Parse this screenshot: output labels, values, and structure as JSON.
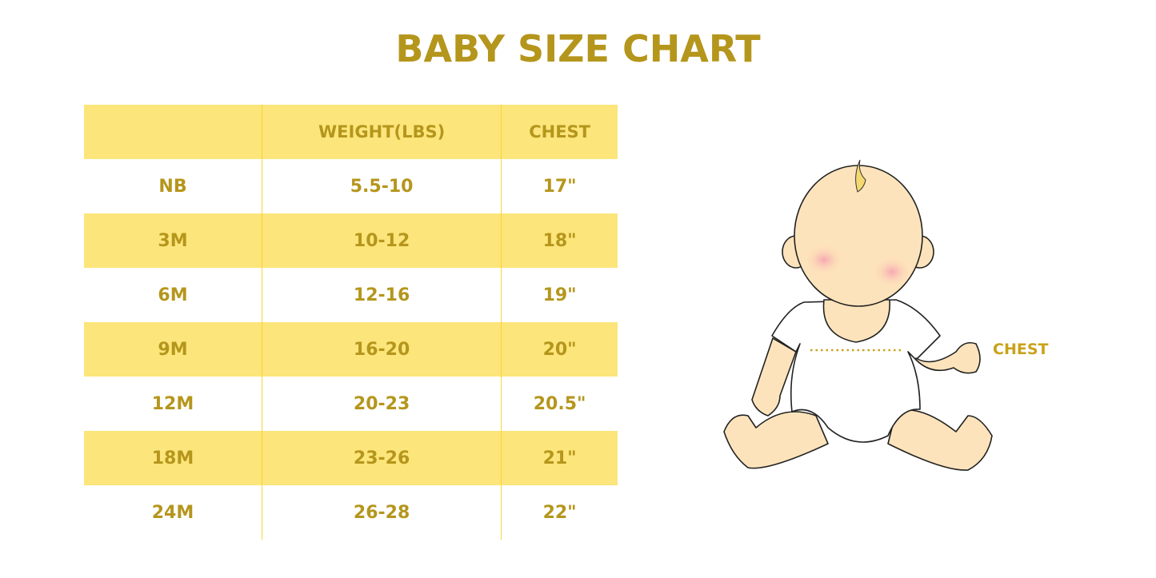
{
  "title": "BABY SIZE CHART",
  "table": {
    "headers": [
      "",
      "WEIGHT(LBS)",
      "CHEST"
    ],
    "rows": [
      [
        "NB",
        "5.5-10",
        "17\""
      ],
      [
        "3M",
        "10-12",
        "18\""
      ],
      [
        "6M",
        "12-16",
        "19\""
      ],
      [
        "9M",
        "16-20",
        "20\""
      ],
      [
        "12M",
        "20-23",
        "20.5\""
      ],
      [
        "18M",
        "23-26",
        "21\""
      ],
      [
        "24M",
        "26-28",
        "22\""
      ]
    ]
  },
  "illustration": {
    "chest_label": "CHEST"
  },
  "colors": {
    "text": "#b5961c",
    "band": "#fce57a",
    "divider": "#f9d43a",
    "skin": "#fde3bb"
  }
}
